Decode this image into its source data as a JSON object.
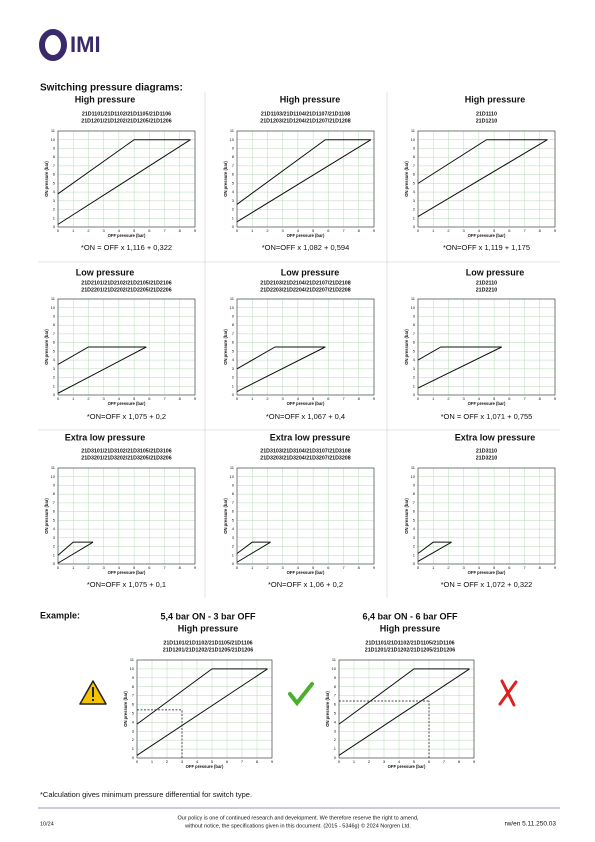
{
  "header": {
    "logo": "IMI"
  },
  "section_title": "Switching pressure diagrams:",
  "axes": {
    "xlabel": "OFF pressure (bar)",
    "ylabel": "ON pressure (bar)",
    "xlim": [
      0,
      9
    ],
    "ylim": [
      0,
      11
    ],
    "xticks": [
      0,
      1,
      2,
      3,
      4,
      5,
      6,
      7,
      8,
      9
    ],
    "yticks": [
      0,
      1,
      2,
      3,
      4,
      5,
      6,
      7,
      8,
      9,
      10,
      11
    ]
  },
  "diagrams": [
    {
      "title": "High pressure",
      "models": [
        "21D1101/21D1102/21D1105/21D1106",
        "21D1201/21D1202/21D1205/21D1206"
      ],
      "formula": "*ON = OFF x 1,116 + 0,322",
      "upper": {
        "x": [
          0,
          5,
          8.7
        ],
        "y": [
          3.8,
          10,
          10
        ]
      },
      "lower": {
        "x": [
          0,
          8.7
        ],
        "y": [
          0.3,
          10
        ]
      }
    },
    {
      "title": "High pressure",
      "models": [
        "21D1103/21D1104/21D1107/21D1108",
        "21D1203/21D1204/21D1207/21D1208"
      ],
      "formula": "*ON=OFF x 1,082 + 0,594",
      "upper": {
        "x": [
          0,
          5.8,
          8.8
        ],
        "y": [
          2.6,
          10,
          10
        ]
      },
      "lower": {
        "x": [
          0,
          8.8
        ],
        "y": [
          0.6,
          10
        ]
      }
    },
    {
      "title": "High pressure",
      "models": [
        "21D1110",
        "21D1210"
      ],
      "formula": "*ON=OFF x 1,119 + 1,175",
      "upper": {
        "x": [
          0,
          4.5,
          8.5
        ],
        "y": [
          5,
          10,
          10
        ]
      },
      "lower": {
        "x": [
          0,
          8.5
        ],
        "y": [
          1.2,
          10
        ]
      }
    },
    {
      "title": "Low pressure",
      "models": [
        "21D2101/21D2102/21D2105/21D2106",
        "21D2201/21D2202/21D2205/21D2206"
      ],
      "formula": "*ON=OFF x 1,075 + 0,2",
      "upper": {
        "x": [
          0,
          2,
          5.8
        ],
        "y": [
          3.5,
          5.5,
          5.5
        ]
      },
      "lower": {
        "x": [
          0,
          5.8
        ],
        "y": [
          0.2,
          5.5
        ]
      }
    },
    {
      "title": "Low pressure",
      "models": [
        "21D2103/21D2104/21D2107/21D2108",
        "21D2203/21D2204/21D2207/21D2208"
      ],
      "formula": "*ON=OFF x 1,067 + 0,4",
      "upper": {
        "x": [
          0,
          2.5,
          5.8
        ],
        "y": [
          3,
          5.5,
          5.5
        ]
      },
      "lower": {
        "x": [
          0,
          5.8
        ],
        "y": [
          0.4,
          5.5
        ]
      }
    },
    {
      "title": "Low pressure",
      "models": [
        "21D2110",
        "21D2210"
      ],
      "formula": "*ON = OFF x 1,071 + 0,755",
      "upper": {
        "x": [
          0,
          1.5,
          5.5
        ],
        "y": [
          4,
          5.5,
          5.5
        ]
      },
      "lower": {
        "x": [
          0,
          5.5
        ],
        "y": [
          0.8,
          5.5
        ]
      }
    },
    {
      "title": "Extra low pressure",
      "models": [
        "21D3101/21D3102/21D3105/21D3106",
        "21D3201/21D3202/21D3205/21D3206"
      ],
      "formula": "*ON=OFF x 1,075 + 0,1",
      "upper": {
        "x": [
          0,
          1,
          2.3
        ],
        "y": [
          1,
          2.5,
          2.5
        ]
      },
      "lower": {
        "x": [
          0,
          2.3
        ],
        "y": [
          0.1,
          2.5
        ]
      }
    },
    {
      "title": "Extra low pressure",
      "models": [
        "21D3103/21D3104/21D3107/21D3108",
        "21D3203/21D3204/21D3207/21D3208"
      ],
      "formula": "*ON=OFF x 1,06 + 0,2",
      "upper": {
        "x": [
          0,
          1,
          2.2
        ],
        "y": [
          1.2,
          2.5,
          2.5
        ]
      },
      "lower": {
        "x": [
          0,
          2.2
        ],
        "y": [
          0.2,
          2.5
        ]
      }
    },
    {
      "title": "Extra low pressure",
      "models": [
        "21D3110",
        "21D3210"
      ],
      "formula": "*ON = OFF x 1,072 + 0,322",
      "upper": {
        "x": [
          0,
          1,
          2.2
        ],
        "y": [
          1.2,
          2.5,
          2.5
        ]
      },
      "lower": {
        "x": [
          0,
          2.2
        ],
        "y": [
          0.3,
          2.5
        ]
      }
    }
  ],
  "example": {
    "label": "Example:",
    "items": [
      {
        "heading": "5,4 bar ON - 3 bar OFF",
        "title": "High pressure",
        "models": [
          "21D1101/21D1102/21D1105/21D1106",
          "21D1201/21D1202/21D1205/21D1206"
        ],
        "upper": {
          "x": [
            0,
            5,
            8.7
          ],
          "y": [
            3.8,
            10,
            10
          ]
        },
        "lower": {
          "x": [
            0,
            8.7
          ],
          "y": [
            0.3,
            10
          ]
        },
        "marker": {
          "off": 3,
          "on": 5.4
        }
      },
      {
        "heading": "6,4 bar ON - 6 bar OFF",
        "title": "High pressure",
        "models": [
          "21D1101/21D1102/21D1105/21D1106",
          "21D1201/21D1202/21D1205/21D1206"
        ],
        "upper": {
          "x": [
            0,
            5,
            8.7
          ],
          "y": [
            3.8,
            10,
            10
          ]
        },
        "lower": {
          "x": [
            0,
            8.7
          ],
          "y": [
            0.3,
            10
          ]
        },
        "marker": {
          "off": 6,
          "on": 6.4
        }
      }
    ]
  },
  "footer": {
    "note": "*Calculation gives minimum pressure differential for switch type.",
    "date": "10/24",
    "policy": [
      "Our policy is one of continued research and development. We therefore reserve the right to amend,",
      "without notice, the specifications given in this document. (2015 - 5346g) © 2024 Norgren Ltd."
    ],
    "code": "rw/en  5.11.250.03"
  }
}
